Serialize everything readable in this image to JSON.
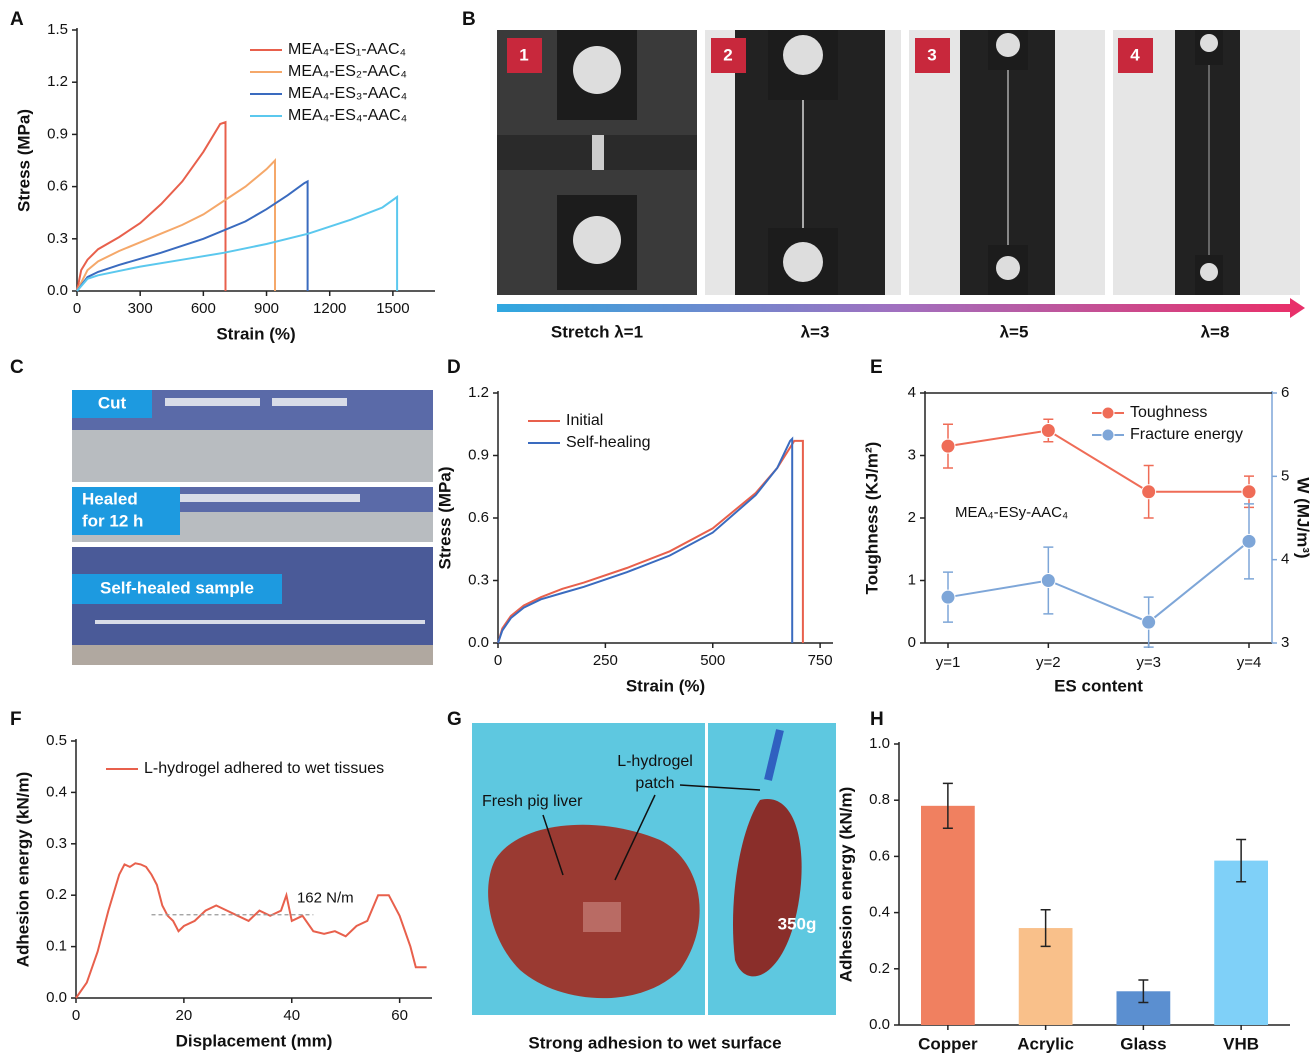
{
  "chart_data": [
    {
      "panel": "A",
      "type": "line",
      "xlabel": "Strain (%)",
      "ylabel": "Stress (MPa)",
      "legend": "upper right",
      "xlim": [
        0,
        1700
      ],
      "xticks": [
        0,
        300,
        600,
        900,
        1200,
        1500
      ],
      "ylim": [
        0,
        1.5
      ],
      "yticks": [
        {
          "value": 0,
          "label": "0.0"
        },
        0.3,
        0.6,
        0.9,
        1.2,
        1.5
      ],
      "series": [
        {
          "name": "MEA₄-ES₁-AAC₄",
          "color": "#e8604c",
          "x": [
            0,
            20,
            50,
            100,
            200,
            300,
            400,
            500,
            600,
            680,
            705,
            705
          ],
          "values": [
            0,
            0.12,
            0.18,
            0.24,
            0.31,
            0.39,
            0.5,
            0.63,
            0.8,
            0.96,
            0.97,
            0
          ]
        },
        {
          "name": "MEA₄-ES₂-AAC₄",
          "color": "#f5a86a",
          "x": [
            0,
            50,
            100,
            200,
            300,
            400,
            500,
            600,
            700,
            800,
            900,
            940,
            940
          ],
          "values": [
            0,
            0.12,
            0.17,
            0.23,
            0.28,
            0.33,
            0.38,
            0.44,
            0.52,
            0.6,
            0.7,
            0.75,
            0
          ]
        },
        {
          "name": "MEA₄-ES₃-AAC₄",
          "color": "#3a6bbf",
          "x": [
            0,
            50,
            100,
            200,
            400,
            600,
            800,
            900,
            1000,
            1080,
            1095,
            1095
          ],
          "values": [
            0,
            0.08,
            0.11,
            0.15,
            0.22,
            0.3,
            0.4,
            0.47,
            0.55,
            0.62,
            0.63,
            0
          ]
        },
        {
          "name": "MEA₄-ES₄-AAC₄",
          "color": "#5bc8ee",
          "x": [
            0,
            50,
            100,
            300,
            500,
            700,
            900,
            1100,
            1300,
            1450,
            1520,
            1520
          ],
          "values": [
            0,
            0.07,
            0.09,
            0.14,
            0.18,
            0.22,
            0.27,
            0.33,
            0.41,
            0.48,
            0.54,
            0
          ]
        }
      ]
    },
    {
      "panel": "D",
      "type": "line",
      "xlabel": "Strain (%)",
      "ylabel": "Stress (MPa)",
      "legend": "upper left",
      "xlim": [
        0,
        780
      ],
      "xticks": [
        0,
        250,
        500,
        750
      ],
      "ylim": [
        0,
        1.2
      ],
      "yticks": [
        {
          "value": 0,
          "label": "0.0"
        },
        0.3,
        0.6,
        0.9,
        1.2
      ],
      "series": [
        {
          "name": "Initial",
          "color": "#e8604c",
          "x": [
            0,
            10,
            30,
            60,
            100,
            150,
            200,
            300,
            400,
            500,
            600,
            650,
            690,
            710,
            710
          ],
          "values": [
            0,
            0.07,
            0.13,
            0.18,
            0.22,
            0.26,
            0.29,
            0.36,
            0.44,
            0.55,
            0.72,
            0.84,
            0.97,
            0.97,
            0
          ]
        },
        {
          "name": "Self-healing",
          "color": "#3a6bbf",
          "x": [
            0,
            10,
            30,
            60,
            100,
            150,
            200,
            300,
            400,
            500,
            600,
            650,
            680,
            685,
            685
          ],
          "values": [
            0,
            0.06,
            0.12,
            0.17,
            0.21,
            0.24,
            0.27,
            0.34,
            0.42,
            0.53,
            0.71,
            0.84,
            0.97,
            0.98,
            0
          ]
        }
      ]
    },
    {
      "panel": "E",
      "type": "line",
      "xlabel": "ES content",
      "ylabel": "Toughness (KJ/m²)",
      "y2label": "W (MJ/m³)",
      "legend": "upper right",
      "annotation": "MEA₄-ESy-AAC₄",
      "categories": [
        "y=1",
        "y=2",
        "y=3",
        "y=4"
      ],
      "ylim": [
        0,
        4
      ],
      "yticks": [
        0,
        1,
        2,
        3,
        4
      ],
      "y2lim": [
        3,
        6
      ],
      "y2ticks": [
        3,
        4,
        5,
        6
      ],
      "series": [
        {
          "name": "Toughness",
          "color": "#ef6c57",
          "values": [
            3.15,
            3.4,
            2.42,
            2.42
          ],
          "errors": [
            0.35,
            0.18,
            0.42,
            0.25
          ]
        },
        {
          "name": "Fracture energy",
          "color": "#7ea6d8",
          "axis": "y2",
          "values": [
            3.55,
            3.75,
            3.25,
            4.22
          ],
          "errors": [
            0.3,
            0.4,
            0.3,
            0.45
          ]
        }
      ]
    },
    {
      "panel": "F",
      "type": "line",
      "xlabel": "Displacement (mm)",
      "ylabel": "Adhesion energy (kN/m)",
      "legend": "upper left",
      "xlim": [
        0,
        66
      ],
      "xticks": [
        0,
        20,
        40,
        60
      ],
      "ylim": [
        0,
        0.5
      ],
      "yticks": [
        {
          "value": 0,
          "label": "0.0"
        },
        0.1,
        0.2,
        0.3,
        0.4,
        0.5
      ],
      "reference": {
        "value": 0.162,
        "label": "162 N/m",
        "x": [
          14,
          44
        ]
      },
      "series": [
        {
          "name": "L-hydrogel adhered to wet tissues",
          "color": "#e8604c",
          "x": [
            0,
            2,
            4,
            6,
            8,
            9,
            10,
            11,
            12,
            13,
            14,
            15,
            16,
            17,
            18,
            19,
            20,
            22,
            24,
            26,
            28,
            30,
            32,
            34,
            36,
            38,
            39,
            40,
            42,
            44,
            46,
            48,
            50,
            52,
            54,
            56,
            58,
            60,
            62,
            63,
            65
          ],
          "values": [
            0,
            0.03,
            0.09,
            0.17,
            0.24,
            0.26,
            0.255,
            0.262,
            0.26,
            0.255,
            0.24,
            0.22,
            0.18,
            0.16,
            0.15,
            0.13,
            0.14,
            0.15,
            0.17,
            0.18,
            0.17,
            0.16,
            0.15,
            0.17,
            0.16,
            0.17,
            0.2,
            0.15,
            0.16,
            0.13,
            0.125,
            0.13,
            0.12,
            0.14,
            0.15,
            0.2,
            0.2,
            0.16,
            0.1,
            0.06,
            0.06
          ]
        }
      ]
    },
    {
      "panel": "H",
      "type": "bar",
      "ylabel": "Adhesion energy (kN/m)",
      "categories": [
        "Copper",
        "Acrylic",
        "Glass",
        "VHB"
      ],
      "values": [
        0.78,
        0.345,
        0.12,
        0.585
      ],
      "errors": [
        0.08,
        0.065,
        0.04,
        0.075
      ],
      "colors": [
        "#f08060",
        "#f9c08a",
        "#5b8fd0",
        "#7fd0f8"
      ],
      "ylim": [
        0,
        1.0
      ],
      "yticks": [
        {
          "value": 0,
          "label": "0.0"
        },
        0.2,
        0.4,
        0.6,
        0.8,
        {
          "value": 1.0,
          "label": "1.0"
        }
      ]
    }
  ],
  "photo_panels": {
    "B": {
      "panel": "B",
      "steps": [
        "1",
        "2",
        "3",
        "4"
      ],
      "captions": [
        "Stretch λ=1",
        "λ=3",
        "λ=5",
        "λ=8"
      ]
    },
    "C": {
      "panel": "C",
      "cut": "Cut",
      "healed": [
        "Healed",
        "for 12 h"
      ],
      "sample": "Self-healed sample"
    },
    "G": {
      "panel": "G",
      "liver": "Fresh pig liver",
      "patch": [
        "L-hydrogel",
        "patch"
      ],
      "weight": "350g",
      "caption": "Strong adhesion to wet surface"
    }
  }
}
